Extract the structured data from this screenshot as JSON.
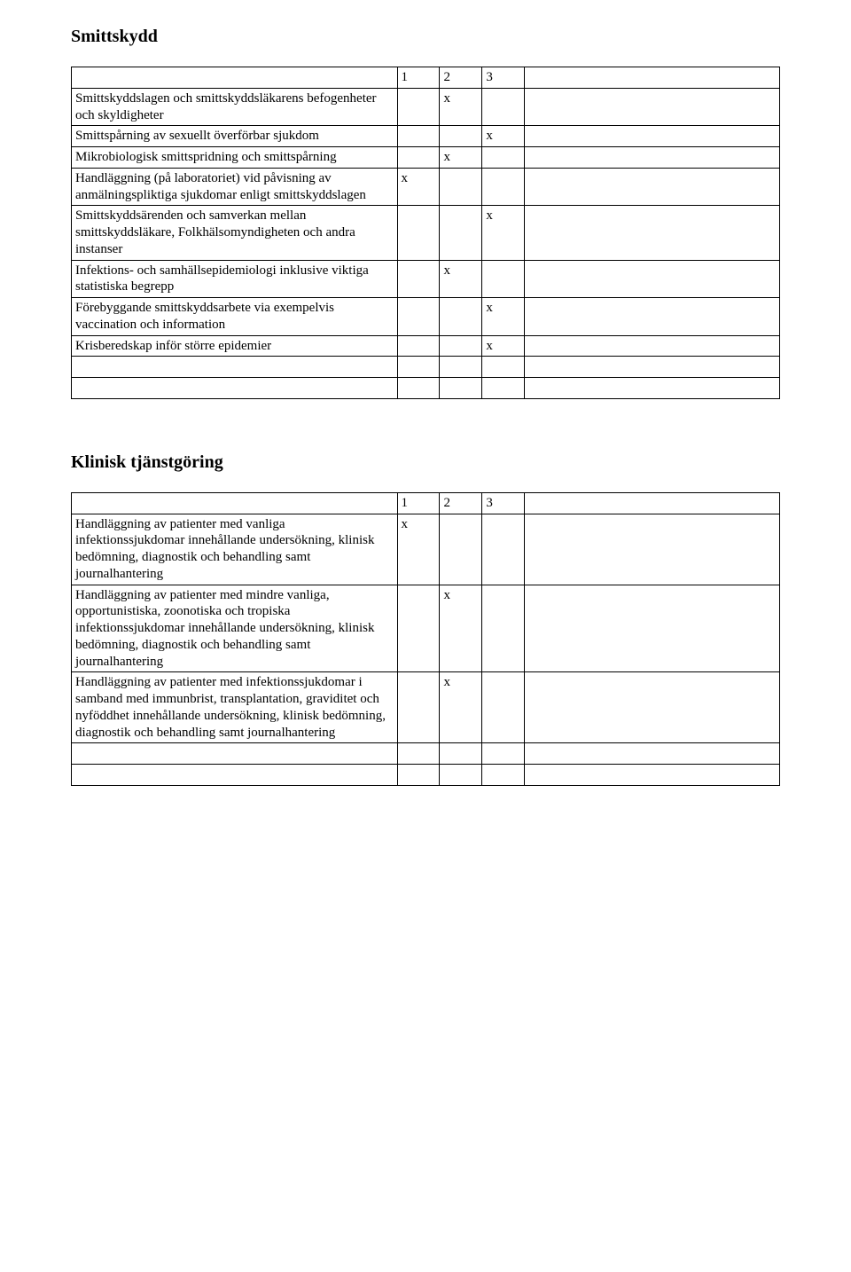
{
  "section1": {
    "title": "Smittskydd",
    "header": {
      "c1": "1",
      "c2": "2",
      "c3": "3"
    },
    "rows": [
      {
        "desc": "Smittskyddslagen och smittskyddsläkarens befogenheter och skyldigheter",
        "c1": "",
        "c2": "x",
        "c3": ""
      },
      {
        "desc": "Smittspårning av sexuellt överförbar sjukdom",
        "c1": "",
        "c2": "",
        "c3": "x"
      },
      {
        "desc": "Mikrobiologisk smittspridning och smittspårning",
        "c1": "",
        "c2": "x",
        "c3": ""
      },
      {
        "desc": "Handläggning (på laboratoriet) vid påvisning av anmälningspliktiga sjukdomar enligt smittskyddslagen",
        "c1": "x",
        "c2": "",
        "c3": ""
      },
      {
        "desc": "Smittskyddsärenden och samverkan mellan smittskyddsläkare, Folkhälsomyndigheten och andra instanser",
        "c1": "",
        "c2": "",
        "c3": "x"
      },
      {
        "desc": "Infektions- och samhällsepidemiologi inklusive viktiga statistiska begrepp",
        "c1": "",
        "c2": "x",
        "c3": ""
      },
      {
        "desc": "Förebyggande smittskyddsarbete via exempelvis vaccination och information",
        "c1": "",
        "c2": "",
        "c3": "x"
      },
      {
        "desc": "Krisberedskap inför större epidemier",
        "c1": "",
        "c2": "",
        "c3": "x"
      },
      {
        "desc": "",
        "c1": "",
        "c2": "",
        "c3": ""
      },
      {
        "desc": "",
        "c1": "",
        "c2": "",
        "c3": ""
      }
    ]
  },
  "section2": {
    "title": "Klinisk tjänstgöring",
    "header": {
      "c1": "1",
      "c2": "2",
      "c3": "3"
    },
    "rows": [
      {
        "desc": "Handläggning av patienter med vanliga infektionssjukdomar innehållande undersökning, klinisk bedömning, diagnostik och behandling samt journalhantering",
        "c1": "x",
        "c2": "",
        "c3": ""
      },
      {
        "desc": "Handläggning av patienter med mindre vanliga, opportunistiska, zoonotiska och tropiska infektionssjukdomar innehållande undersökning, klinisk bedömning, diagnostik och behandling samt journalhantering",
        "c1": "",
        "c2": "x",
        "c3": ""
      },
      {
        "desc": "Handläggning av patienter med infektionssjukdomar i samband med immunbrist, transplantation, graviditet och nyföddhet innehållande undersökning, klinisk bedömning, diagnostik och behandling samt journalhantering",
        "c1": "",
        "c2": "x",
        "c3": ""
      },
      {
        "desc": "",
        "c1": "",
        "c2": "",
        "c3": ""
      },
      {
        "desc": "",
        "c1": "",
        "c2": "",
        "c3": ""
      }
    ]
  }
}
